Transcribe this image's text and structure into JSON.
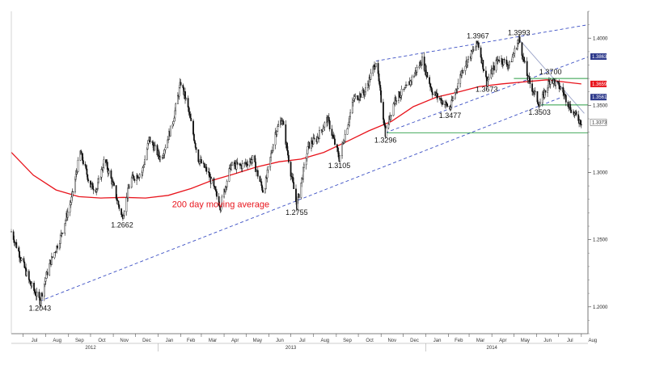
{
  "chart_data": {
    "type": "candlestick",
    "title": "",
    "xlabel": "",
    "ylabel": "",
    "ylim": [
      1.18,
      1.42
    ],
    "xlim": [
      "2012-06-15",
      "2014-08-10"
    ],
    "grid": false,
    "y_ticks": [
      "1.4000",
      "1.3500",
      "1.3000",
      "1.2500",
      "1.2000"
    ],
    "x_month_labels": [
      {
        "d": "2012-07-01",
        "t": "Jul"
      },
      {
        "d": "2012-08-01",
        "t": "Aug"
      },
      {
        "d": "2012-09-01",
        "t": "Sep"
      },
      {
        "d": "2012-10-01",
        "t": "Oct"
      },
      {
        "d": "2012-11-01",
        "t": "Nov"
      },
      {
        "d": "2012-12-01",
        "t": "Dec"
      },
      {
        "d": "2013-01-01",
        "t": "Jan"
      },
      {
        "d": "2013-02-01",
        "t": "Feb"
      },
      {
        "d": "2013-03-01",
        "t": "Mar"
      },
      {
        "d": "2013-04-01",
        "t": "Apr"
      },
      {
        "d": "2013-05-01",
        "t": "May"
      },
      {
        "d": "2013-06-01",
        "t": "Jun"
      },
      {
        "d": "2013-07-01",
        "t": "Jul"
      },
      {
        "d": "2013-08-01",
        "t": "Aug"
      },
      {
        "d": "2013-09-01",
        "t": "Sep"
      },
      {
        "d": "2013-10-01",
        "t": "Oct"
      },
      {
        "d": "2013-11-01",
        "t": "Nov"
      },
      {
        "d": "2013-12-01",
        "t": "Dec"
      },
      {
        "d": "2014-01-01",
        "t": "Jan"
      },
      {
        "d": "2014-02-01",
        "t": "Feb"
      },
      {
        "d": "2014-03-01",
        "t": "Mar"
      },
      {
        "d": "2014-04-01",
        "t": "Apr"
      },
      {
        "d": "2014-05-01",
        "t": "May"
      },
      {
        "d": "2014-06-01",
        "t": "Jun"
      },
      {
        "d": "2014-07-01",
        "t": "Jul"
      },
      {
        "d": "2014-08-01",
        "t": "Aug"
      }
    ],
    "x_year_labels": [
      {
        "d": "2012-10-01",
        "t": "2012"
      },
      {
        "d": "2013-07-01",
        "t": "2013"
      },
      {
        "d": "2014-04-01",
        "t": "2014"
      }
    ],
    "price_path": [
      [
        "2012-06-15",
        1.256
      ],
      [
        "2012-07-01",
        1.232
      ],
      [
        "2012-07-10",
        1.218
      ],
      [
        "2012-07-24",
        1.2043
      ],
      [
        "2012-08-05",
        1.23
      ],
      [
        "2012-08-20",
        1.25
      ],
      [
        "2012-09-05",
        1.28
      ],
      [
        "2012-09-17",
        1.315
      ],
      [
        "2012-10-01",
        1.29
      ],
      [
        "2012-10-10",
        1.288
      ],
      [
        "2012-10-20",
        1.31
      ],
      [
        "2012-11-01",
        1.29
      ],
      [
        "2012-11-13",
        1.2662
      ],
      [
        "2012-11-25",
        1.295
      ],
      [
        "2012-12-10",
        1.3
      ],
      [
        "2012-12-20",
        1.325
      ],
      [
        "2013-01-05",
        1.31
      ],
      [
        "2013-01-20",
        1.335
      ],
      [
        "2013-02-01",
        1.367
      ],
      [
        "2013-02-10",
        1.35
      ],
      [
        "2013-02-25",
        1.31
      ],
      [
        "2013-03-10",
        1.3
      ],
      [
        "2013-03-27",
        1.275
      ],
      [
        "2013-04-10",
        1.305
      ],
      [
        "2013-04-25",
        1.305
      ],
      [
        "2013-05-10",
        1.31
      ],
      [
        "2013-05-25",
        1.285
      ],
      [
        "2013-06-10",
        1.33
      ],
      [
        "2013-06-19",
        1.34
      ],
      [
        "2013-07-01",
        1.3
      ],
      [
        "2013-07-09",
        1.2755
      ],
      [
        "2013-07-25",
        1.32
      ],
      [
        "2013-08-05",
        1.325
      ],
      [
        "2013-08-20",
        1.34
      ],
      [
        "2013-09-05",
        1.3105
      ],
      [
        "2013-09-25",
        1.355
      ],
      [
        "2013-10-10",
        1.36
      ],
      [
        "2013-10-25",
        1.383
      ],
      [
        "2013-11-07",
        1.3296
      ],
      [
        "2013-11-20",
        1.355
      ],
      [
        "2013-12-05",
        1.362
      ],
      [
        "2013-12-27",
        1.384
      ],
      [
        "2014-01-10",
        1.36
      ],
      [
        "2014-02-03",
        1.3477
      ],
      [
        "2014-02-20",
        1.377
      ],
      [
        "2014-03-13",
        1.3967
      ],
      [
        "2014-03-25",
        1.3673
      ],
      [
        "2014-04-10",
        1.385
      ],
      [
        "2014-04-25",
        1.38
      ],
      [
        "2014-05-08",
        1.3993
      ],
      [
        "2014-05-20",
        1.37
      ],
      [
        "2014-06-05",
        1.3503
      ],
      [
        "2014-06-20",
        1.37
      ],
      [
        "2014-07-05",
        1.362
      ],
      [
        "2014-07-20",
        1.345
      ],
      [
        "2014-08-01",
        1.3373
      ]
    ],
    "moving_average": {
      "name": "200 day moving average",
      "color": "#e8141c",
      "values": [
        [
          "2012-06-15",
          1.315
        ],
        [
          "2012-07-15",
          1.298
        ],
        [
          "2012-08-15",
          1.287
        ],
        [
          "2012-09-15",
          1.282
        ],
        [
          "2012-10-15",
          1.281
        ],
        [
          "2012-11-15",
          1.2815
        ],
        [
          "2012-12-15",
          1.281
        ],
        [
          "2013-01-15",
          1.283
        ],
        [
          "2013-02-15",
          1.288
        ],
        [
          "2013-03-15",
          1.294
        ],
        [
          "2013-04-15",
          1.299
        ],
        [
          "2013-05-15",
          1.304
        ],
        [
          "2013-06-15",
          1.308
        ],
        [
          "2013-07-15",
          1.31
        ],
        [
          "2013-08-15",
          1.315
        ],
        [
          "2013-09-15",
          1.323
        ],
        [
          "2013-10-15",
          1.331
        ],
        [
          "2013-11-15",
          1.338
        ],
        [
          "2013-12-15",
          1.349
        ],
        [
          "2014-01-15",
          1.356
        ],
        [
          "2014-02-15",
          1.36
        ],
        [
          "2014-03-15",
          1.364
        ],
        [
          "2014-04-15",
          1.366
        ],
        [
          "2014-05-15",
          1.3675
        ],
        [
          "2014-06-15",
          1.369
        ],
        [
          "2014-07-15",
          1.367
        ],
        [
          "2014-08-01",
          1.3659
        ]
      ]
    },
    "lines": [
      {
        "name": "long-term-support",
        "style": "dashed",
        "color": "#3b4fc4",
        "from": [
          "2012-07-24",
          1.2043
        ],
        "to": [
          "2014-07-05",
          1.356
        ]
      },
      {
        "name": "channel-top",
        "style": "dashed",
        "color": "#3b4fc4",
        "from": [
          "2013-10-25",
          1.383
        ],
        "to": [
          "2014-08-10",
          1.41
        ]
      },
      {
        "name": "channel-bottom",
        "style": "dashed",
        "color": "#3b4fc4",
        "from": [
          "2013-11-07",
          1.3296
        ],
        "to": [
          "2014-08-10",
          1.386
        ]
      },
      {
        "name": "downtrend",
        "style": "solid",
        "color": "#9aa3c8",
        "from": [
          "2014-05-08",
          1.3993
        ],
        "to": [
          "2014-08-05",
          1.344
        ]
      },
      {
        "name": "support-1.3296",
        "style": "solid",
        "color": "#2a9d45",
        "from": [
          "2013-11-07",
          1.3296
        ],
        "to": [
          "2014-08-10",
          1.3296
        ]
      },
      {
        "name": "level-1.3700",
        "style": "solid",
        "color": "#2a9d45",
        "from": [
          "2014-05-01",
          1.37
        ],
        "to": [
          "2014-08-10",
          1.37
        ]
      },
      {
        "name": "level-1.3503",
        "style": "solid",
        "color": "#2a9d45",
        "from": [
          "2014-06-05",
          1.3503
        ],
        "to": [
          "2014-08-10",
          1.3503
        ]
      }
    ],
    "annotations": [
      {
        "d": "2012-07-24",
        "v": 1.2043,
        "text": "1.2043",
        "pos": "below"
      },
      {
        "d": "2012-11-13",
        "v": 1.2662,
        "text": "1.2662",
        "pos": "below"
      },
      {
        "d": "2013-07-09",
        "v": 1.2755,
        "text": "1.2755",
        "pos": "below"
      },
      {
        "d": "2013-09-05",
        "v": 1.3105,
        "text": "1.3105",
        "pos": "below"
      },
      {
        "d": "2013-11-07",
        "v": 1.3296,
        "text": "1.3296",
        "pos": "below"
      },
      {
        "d": "2014-02-03",
        "v": 1.3477,
        "text": "1.3477",
        "pos": "below"
      },
      {
        "d": "2014-03-25",
        "v": 1.3673,
        "text": "1.3673",
        "pos": "below"
      },
      {
        "d": "2014-06-05",
        "v": 1.3503,
        "text": "1.3503",
        "pos": "below"
      },
      {
        "d": "2014-03-13",
        "v": 1.3967,
        "text": "1.3967",
        "pos": "above"
      },
      {
        "d": "2014-05-08",
        "v": 1.3993,
        "text": "1.3993",
        "pos": "above"
      },
      {
        "d": "2014-06-20",
        "v": 1.37,
        "text": "1.3700",
        "pos": "above"
      }
    ],
    "ma_label": {
      "d": "2013-01-20",
      "v": 1.274,
      "text": "200 day moving average"
    },
    "right_axis_markers": [
      {
        "v": 1.3863,
        "text": "1.3863",
        "color": "#2e3a8c"
      },
      {
        "v": 1.3659,
        "text": "1.3659",
        "color": "#e8141c"
      },
      {
        "v": 1.3561,
        "text": "1.3561",
        "color": "#2e3a8c"
      }
    ],
    "right_axis_values": [
      {
        "v": 1.3373,
        "text": "1.3373"
      }
    ]
  }
}
